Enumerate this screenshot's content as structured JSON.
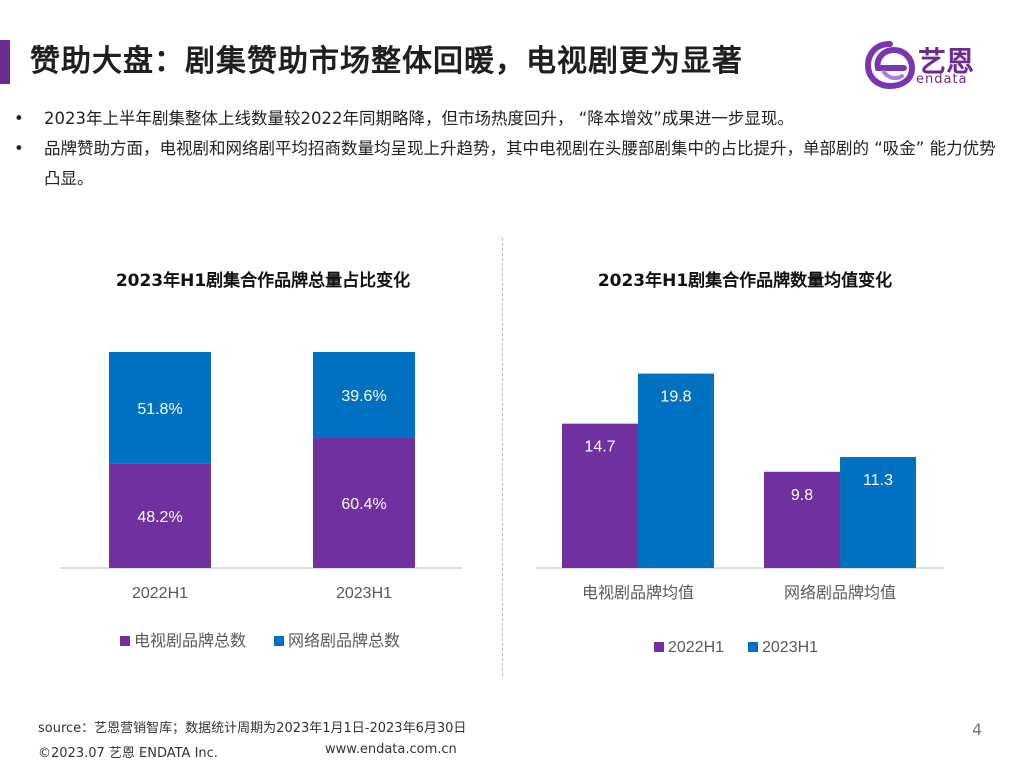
{
  "page": {
    "title": "赞助大盘：剧集赞助市场整体回暖，电视剧更为显著",
    "bullets": [
      "2023年上半年剧集整体上线数量较2022年同期略降，但市场热度回升，  “降本增效”成果进一步显现。",
      "品牌赞助方面，电视剧和网络剧平均招商数量均呈现上升趋势，其中电视剧在头腰部剧集中的占比提升，单部剧的  “吸金”  能力优势凸显。"
    ],
    "bullet_marker": "•",
    "source": "source：艺恩营销智库；数据统计周期为2023年1月1日-2023年6月30日",
    "copyright": "©2023.07 艺恩 ENDATA Inc.",
    "url": "www.endata.com.cn",
    "page_number": "4"
  },
  "logo": {
    "cn": "艺恩",
    "en": "endata",
    "icon": "endata-e-logo-icon"
  },
  "colors": {
    "purple": "#7030a0",
    "blue": "#0070c0",
    "title_accent": "#6b2c91"
  },
  "chart_data": [
    {
      "type": "bar",
      "stacked": true,
      "title": "2023年H1剧集合作品牌总量占比变化",
      "categories": [
        "2022H1",
        "2023H1"
      ],
      "series": [
        {
          "name": "电视剧品牌总数",
          "values": [
            48.2,
            60.4
          ],
          "labels": [
            "48.2%",
            "60.4%"
          ],
          "color": "#7030a0"
        },
        {
          "name": "网络剧品牌总数",
          "values": [
            51.8,
            39.6
          ],
          "labels": [
            "51.8%",
            "39.6%"
          ],
          "color": "#0070c0"
        }
      ],
      "ylim": [
        0,
        100
      ],
      "legend": "bottom",
      "grid": false
    },
    {
      "type": "bar",
      "stacked": false,
      "title": "2023年H1剧集合作品牌数量均值变化",
      "categories": [
        "电视剧品牌均值",
        "网络剧品牌均值"
      ],
      "series": [
        {
          "name": "2022H1",
          "values": [
            14.7,
            9.8
          ],
          "color": "#7030a0"
        },
        {
          "name": "2023H1",
          "values": [
            19.8,
            11.3
          ],
          "color": "#0070c0"
        }
      ],
      "ylim": [
        0,
        22
      ],
      "legend": "bottom",
      "grid": false
    }
  ]
}
